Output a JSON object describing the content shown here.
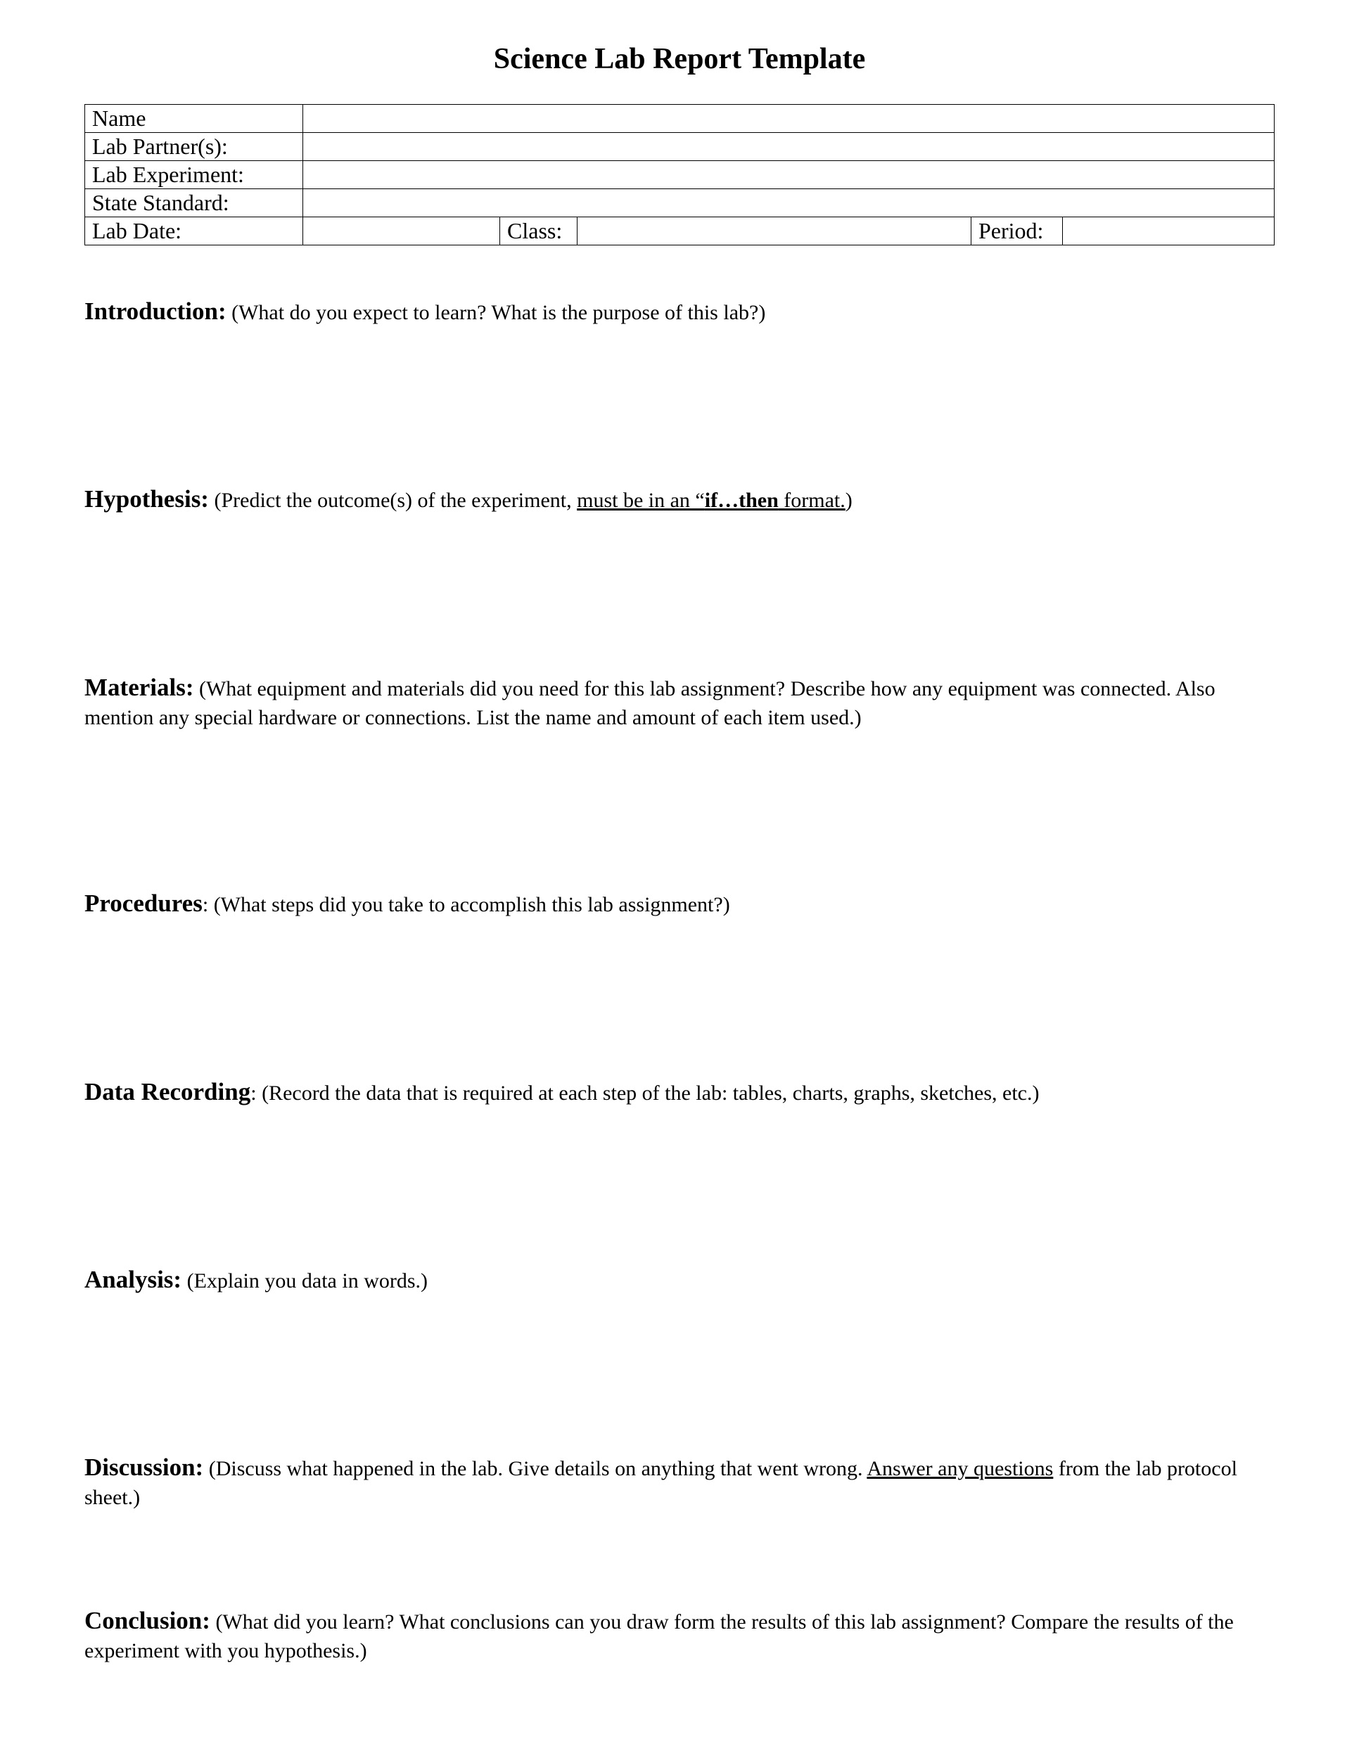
{
  "title": "Science Lab Report Template",
  "header": {
    "rows": [
      {
        "label": "Name"
      },
      {
        "label": "Lab Partner(s):"
      },
      {
        "label": "Lab Experiment:"
      },
      {
        "label": "State Standard:"
      }
    ],
    "dateRow": {
      "dateLabel": "Lab Date:",
      "classLabel": "Class:",
      "periodLabel": "Period:"
    }
  },
  "sections": {
    "introduction": {
      "heading": "Introduction:",
      "hint": " (What do you expect to learn? What is the purpose of this lab?)"
    },
    "hypothesis": {
      "heading": "Hypothesis:",
      "hintPrefix": " (Predict the outcome(s) of the experiment, ",
      "hintUnderlinePre": "must be in an “",
      "hintBold": "if…then",
      "hintUnderlinePost": " format.",
      "hintSuffix": ")"
    },
    "materials": {
      "heading": "Materials:",
      "hint": " (What equipment and materials did you need for this lab assignment? Describe how any equipment was connected. Also mention any special hardware or connections. List the name and amount of each item used.)"
    },
    "procedures": {
      "heading": "Procedures",
      "colon": ":",
      "hint": " (What steps did you take to accomplish this lab assignment?)"
    },
    "dataRecording": {
      "heading": "Data Recording",
      "colon": ":",
      "hint": " (Record the data that is required at each step of the lab: tables, charts, graphs, sketches, etc.)"
    },
    "analysis": {
      "heading": "Analysis:",
      "hint": " (Explain you data in words.)"
    },
    "discussion": {
      "heading": "Discussion:",
      "hintPrefix": " (Discuss what happened in the lab. Give details on anything that went wrong. ",
      "hintUnderline": "Answer any questions",
      "hintSuffix": " from the lab protocol sheet.)"
    },
    "conclusion": {
      "heading": "Conclusion:",
      "hint": " (What did you learn? What conclusions can you draw form the results of this lab assignment? Compare the results of the experiment with you hypothesis.)"
    }
  }
}
